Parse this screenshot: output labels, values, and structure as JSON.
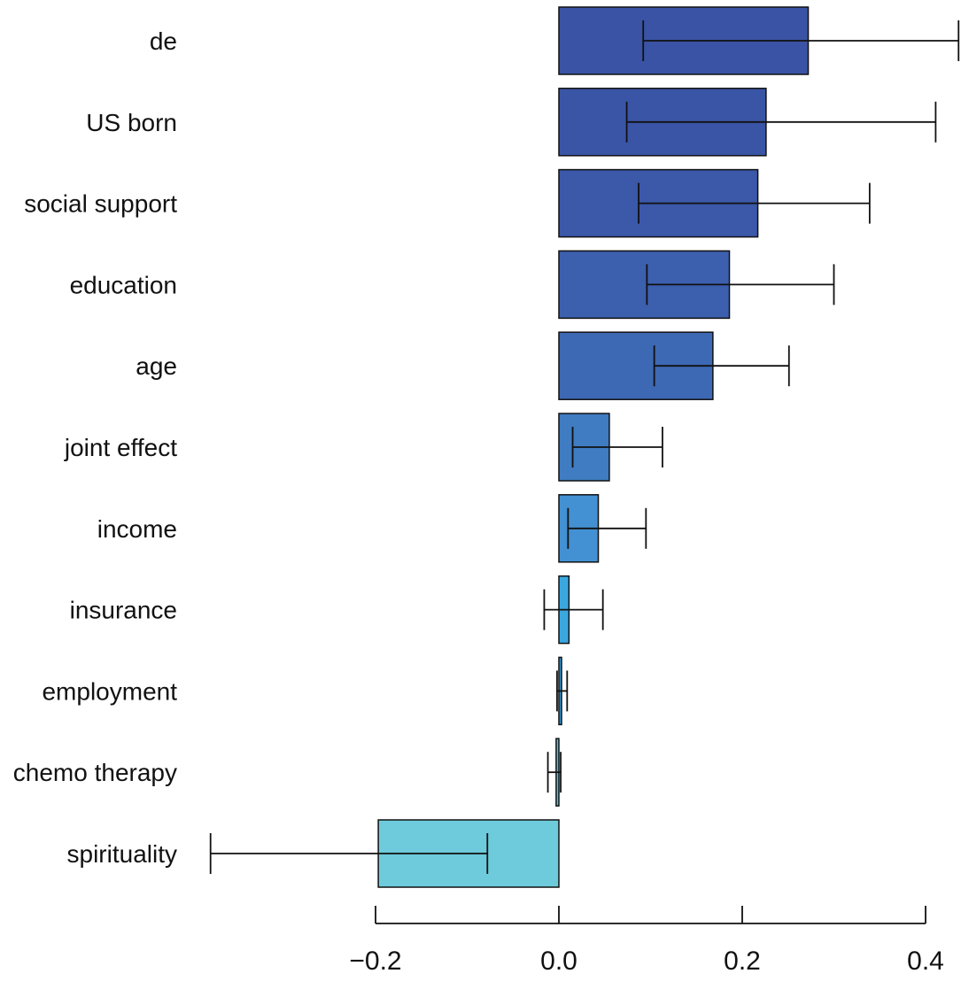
{
  "chart_data": {
    "type": "bar",
    "orientation": "horizontal",
    "title": "",
    "xlabel": "",
    "ylabel": "",
    "xlim": [
      -0.2,
      0.4
    ],
    "x_ticks": [
      -0.2,
      0.0,
      0.2,
      0.4
    ],
    "x_tick_labels": [
      "−0.2",
      "0.0",
      "0.2",
      "0.4"
    ],
    "grid": false,
    "legend": "none",
    "categories": [
      "de",
      "US born",
      "social support",
      "education",
      "age",
      "joint effect",
      "income",
      "insurance",
      "employment",
      "chemo therapy",
      "spirituality"
    ],
    "values": [
      0.272,
      0.226,
      0.217,
      0.186,
      0.168,
      0.055,
      0.043,
      0.011,
      0.002,
      -0.003,
      -0.197
    ],
    "error_low": [
      0.092,
      0.074,
      0.087,
      0.096,
      0.104,
      0.015,
      0.01,
      -0.016,
      -0.002,
      -0.012,
      -0.38
    ],
    "error_high": [
      0.436,
      0.411,
      0.339,
      0.3,
      0.251,
      0.113,
      0.095,
      0.048,
      0.009,
      0.002,
      -0.078
    ],
    "colors": [
      "#3a53a4",
      "#3a55a6",
      "#3b58a9",
      "#3c5fae",
      "#3d68b3",
      "#3f7cc2",
      "#4390d2",
      "#3ba7df",
      "#2ca1dd",
      "#5bbfd9",
      "#6dcbdc"
    ]
  }
}
